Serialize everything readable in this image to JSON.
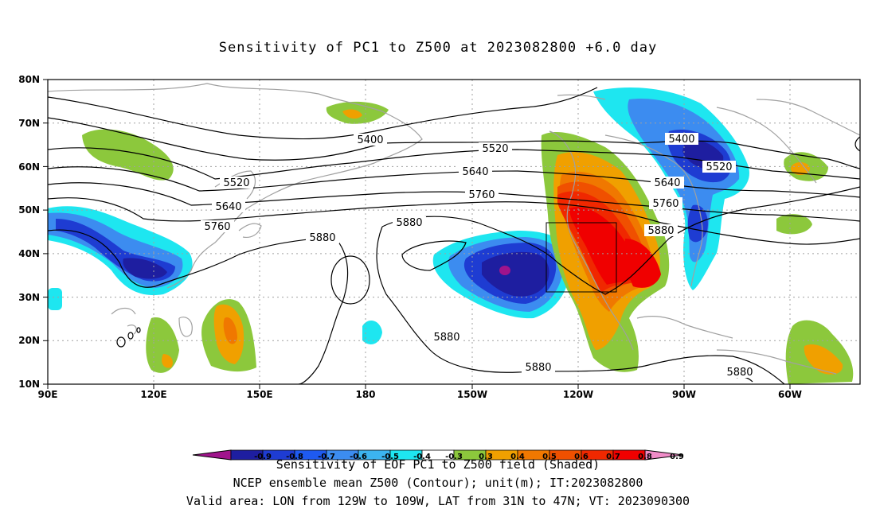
{
  "title": "Sensitivity of PC1 to Z500 at 2023082800 +6.0 day",
  "captions": {
    "line1": "Sensitivity of EOF PC1 to Z500 field (Shaded)",
    "line2": "NCEP ensemble mean Z500 (Contour); unit(m); IT:2023082800",
    "line3": "Valid area: LON from 129W to 109W, LAT from 31N to 47N; VT: 2023090300"
  },
  "map": {
    "lat_labels": [
      "80N",
      "70N",
      "60N",
      "50N",
      "40N",
      "30N",
      "20N",
      "10N"
    ],
    "lon_labels": [
      "90E",
      "120E",
      "150E",
      "180",
      "150W",
      "120W",
      "90W",
      "60W"
    ],
    "lat_range": [
      10,
      80
    ],
    "lon_range_east_deg": [
      90,
      320
    ],
    "grid": true,
    "valid_area": {
      "lon": [
        -129,
        -109
      ],
      "lat": [
        31,
        47
      ]
    },
    "contour_labels": [
      "5400",
      "5520",
      "5640",
      "5760",
      "5880",
      "5880",
      "5880",
      "5400",
      "5520",
      "5640",
      "5760",
      "5880",
      "5880",
      "5880",
      "5520",
      "5640",
      "5760"
    ]
  },
  "colorbar": {
    "ticks": [
      "-0.9",
      "-0.8",
      "-0.7",
      "-0.6",
      "-0.5",
      "-0.4",
      "-0.3",
      "0.3",
      "0.4",
      "0.5",
      "0.6",
      "0.7",
      "0.8",
      "0.9"
    ],
    "colors": [
      "#a0148c",
      "#1e1ea0",
      "#1e3cd2",
      "#1e5af0",
      "#3c8cf0",
      "#3cb4f0",
      "#1ee6f0",
      "#ffffff",
      "#8cc83c",
      "#f0a000",
      "#f07800",
      "#f05000",
      "#f02800",
      "#f00000",
      "#f08cc8"
    ]
  },
  "colors": {
    "coast": "#a0a0a0",
    "contour": "#000000",
    "grid": "#a0a0a0"
  }
}
